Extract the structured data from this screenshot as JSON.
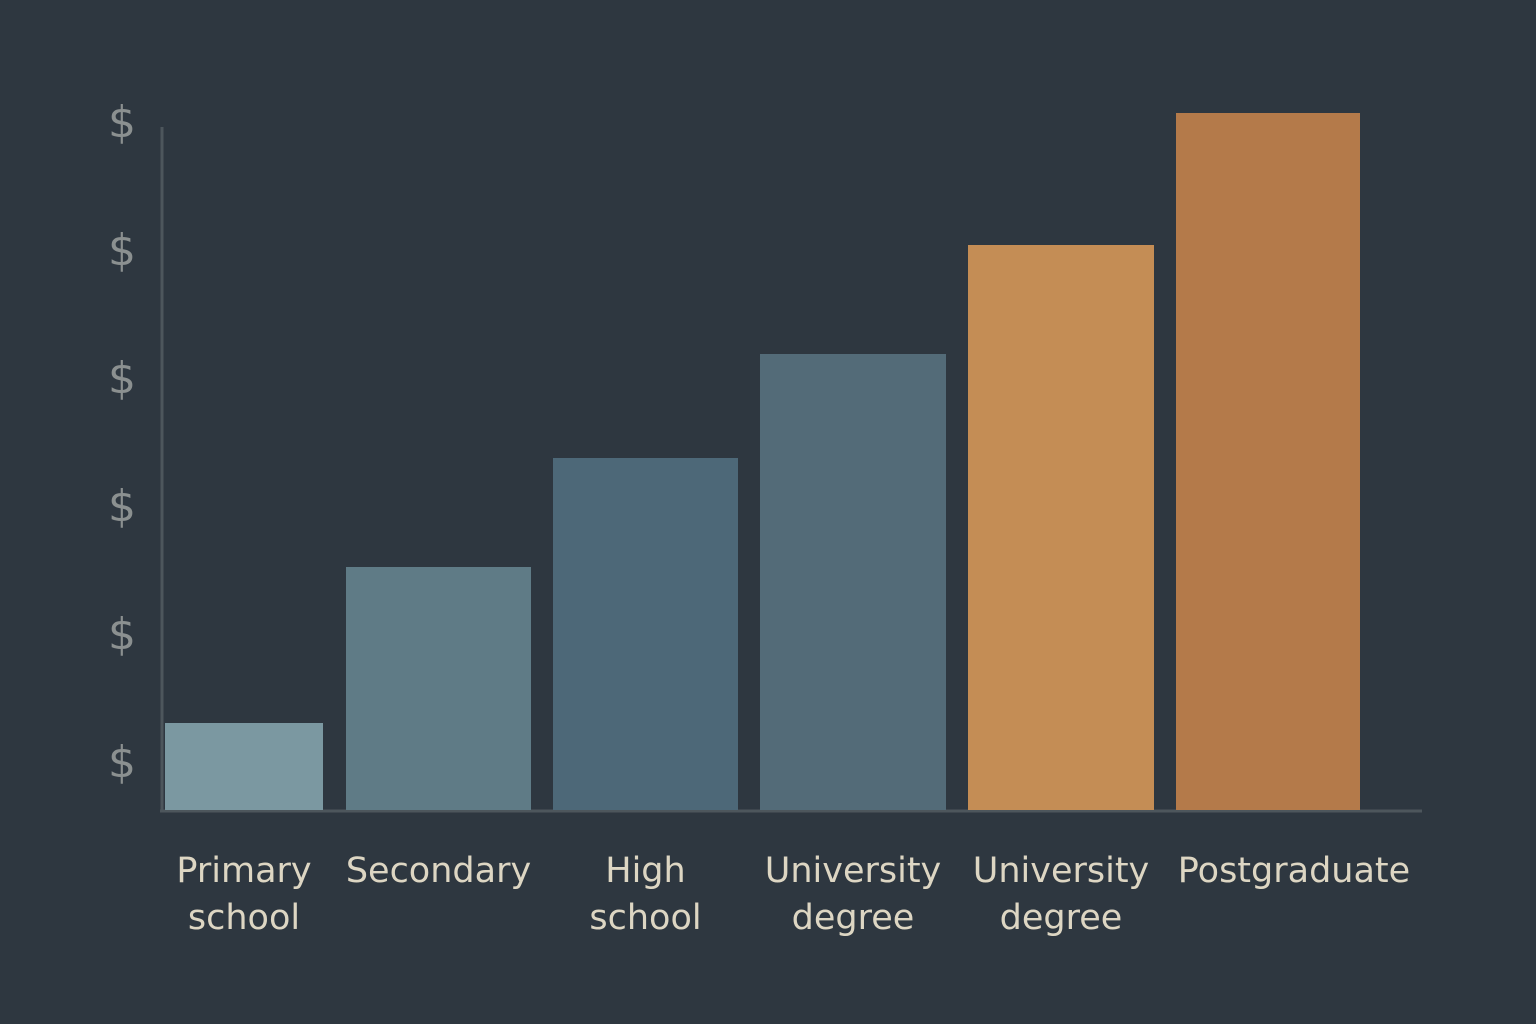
{
  "chart_data": {
    "type": "bar",
    "categories": [
      "Primary school",
      "Secondary",
      "High school",
      "University degree",
      "University degree",
      "Postgraduate"
    ],
    "values": [
      8.7,
      24.3,
      35.2,
      45.6,
      56.5,
      69.7
    ],
    "colors": [
      "#7b98a1",
      "#5f7b86",
      "#4d6878",
      "#536b78",
      "#c48d55",
      "#b47a4a"
    ],
    "ylim": [
      0,
      70
    ],
    "yticks": [
      {
        "value": 4.5,
        "label": "$"
      },
      {
        "value": 17.3,
        "label": "$"
      },
      {
        "value": 30.1,
        "label": "$"
      },
      {
        "value": 42.9,
        "label": "$"
      },
      {
        "value": 55.7,
        "label": "$"
      },
      {
        "value": 68.5,
        "label": "$"
      }
    ]
  }
}
